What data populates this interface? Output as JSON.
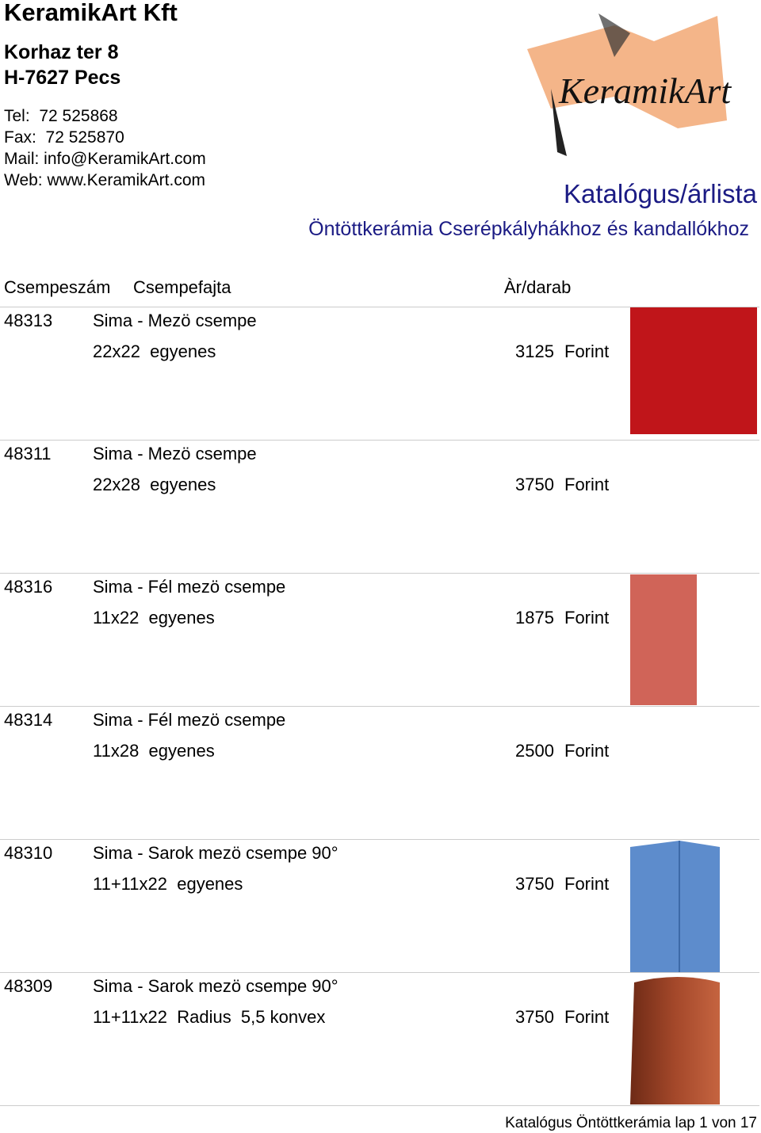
{
  "header": {
    "company": "KeramikArt Kft",
    "address": [
      "Korhaz ter 8",
      "H-7627 Pecs"
    ],
    "contact": [
      "Tel:  72 525868",
      "Fax:  72 525870",
      "Mail: info@KeramikArt.com",
      "Web: www.KeramikArt.com"
    ],
    "logo": "KeramikArt",
    "title": "Katalógus/árlista",
    "subtitle": "Öntöttkerámia Cserépkályhákhoz és kandallókhoz"
  },
  "table": {
    "columns": [
      "Csempeszám",
      "Csempefajta",
      "Àr/darab"
    ],
    "rows": [
      [
        "48313",
        "Sima - Mezö csempe",
        "22x22  egyenes",
        "3125",
        "Forint"
      ],
      [
        "48311",
        "Sima - Mezö csempe",
        "22x28  egyenes",
        "3750",
        "Forint"
      ],
      [
        "48316",
        "Sima - Fél mezö csempe",
        "11x22  egyenes",
        "1875",
        "Forint"
      ],
      [
        "48314",
        "Sima - Fél mezö csempe",
        "11x28  egyenes",
        "2500",
        "Forint"
      ],
      [
        "48310",
        "Sima - Sarok mezö csempe 90°",
        "11+11x22  egyenes",
        "3750",
        "Forint"
      ],
      [
        "48309",
        "Sima - Sarok mezö csempe 90°",
        "11+11x22  Radius  5,5 konvex",
        "3750",
        "Forint"
      ]
    ]
  },
  "footer": "Katalógus Öntöttkerámia lap 1 von 17"
}
